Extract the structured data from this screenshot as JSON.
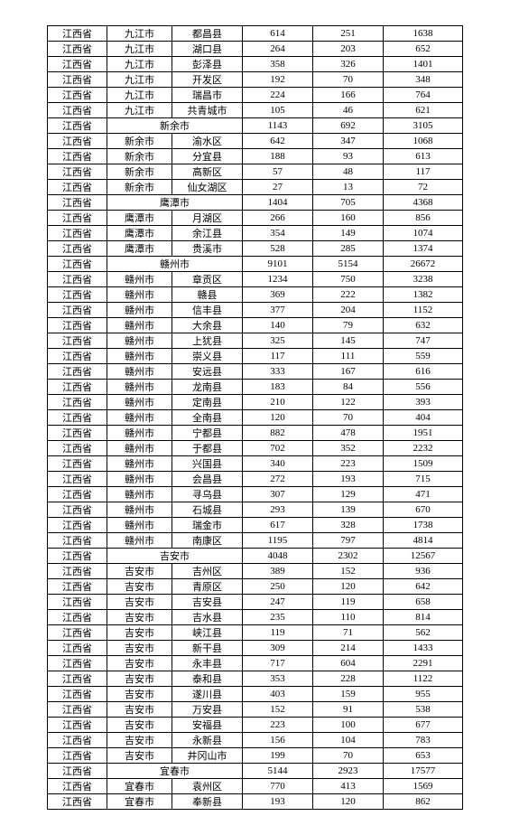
{
  "columns": 6,
  "rows": [
    [
      "江西省",
      "九江市",
      "都昌县",
      "614",
      "251",
      "1638"
    ],
    [
      "江西省",
      "九江市",
      "湖口县",
      "264",
      "203",
      "652"
    ],
    [
      "江西省",
      "九江市",
      "彭泽县",
      "358",
      "326",
      "1401"
    ],
    [
      "江西省",
      "九江市",
      "开发区",
      "192",
      "70",
      "348"
    ],
    [
      "江西省",
      "九江市",
      "瑞昌市",
      "224",
      "166",
      "764"
    ],
    [
      "江西省",
      "九江市",
      "共青城市",
      "105",
      "46",
      "621"
    ],
    {
      "span": "city",
      "province": "江西省",
      "city": "新余市",
      "v1": "1143",
      "v2": "692",
      "v3": "3105"
    },
    [
      "江西省",
      "新余市",
      "渝水区",
      "642",
      "347",
      "1068"
    ],
    [
      "江西省",
      "新余市",
      "分宜县",
      "188",
      "93",
      "613"
    ],
    [
      "江西省",
      "新余市",
      "高新区",
      "57",
      "48",
      "117"
    ],
    [
      "江西省",
      "新余市",
      "仙女湖区",
      "27",
      "13",
      "72"
    ],
    {
      "span": "city",
      "province": "江西省",
      "city": "鹰潭市",
      "v1": "1404",
      "v2": "705",
      "v3": "4368"
    },
    [
      "江西省",
      "鹰潭市",
      "月湖区",
      "266",
      "160",
      "856"
    ],
    [
      "江西省",
      "鹰潭市",
      "余江县",
      "354",
      "149",
      "1074"
    ],
    [
      "江西省",
      "鹰潭市",
      "贵溪市",
      "528",
      "285",
      "1374"
    ],
    {
      "span": "city",
      "province": "江西省",
      "city": "赣州市",
      "v1": "9101",
      "v2": "5154",
      "v3": "26672"
    },
    [
      "江西省",
      "赣州市",
      "章贡区",
      "1234",
      "750",
      "3238"
    ],
    [
      "江西省",
      "赣州市",
      "赣县",
      "369",
      "222",
      "1382"
    ],
    [
      "江西省",
      "赣州市",
      "信丰县",
      "377",
      "204",
      "1152"
    ],
    [
      "江西省",
      "赣州市",
      "大余县",
      "140",
      "79",
      "632"
    ],
    [
      "江西省",
      "赣州市",
      "上犹县",
      "325",
      "145",
      "747"
    ],
    [
      "江西省",
      "赣州市",
      "崇义县",
      "117",
      "111",
      "559"
    ],
    [
      "江西省",
      "赣州市",
      "安远县",
      "333",
      "167",
      "616"
    ],
    [
      "江西省",
      "赣州市",
      "龙南县",
      "183",
      "84",
      "556"
    ],
    [
      "江西省",
      "赣州市",
      "定南县",
      "210",
      "122",
      "393"
    ],
    [
      "江西省",
      "赣州市",
      "全南县",
      "120",
      "70",
      "404"
    ],
    [
      "江西省",
      "赣州市",
      "宁都县",
      "882",
      "478",
      "1951"
    ],
    [
      "江西省",
      "赣州市",
      "于都县",
      "702",
      "352",
      "2232"
    ],
    [
      "江西省",
      "赣州市",
      "兴国县",
      "340",
      "223",
      "1509"
    ],
    [
      "江西省",
      "赣州市",
      "会昌县",
      "272",
      "193",
      "715"
    ],
    [
      "江西省",
      "赣州市",
      "寻乌县",
      "307",
      "129",
      "471"
    ],
    [
      "江西省",
      "赣州市",
      "石城县",
      "293",
      "139",
      "670"
    ],
    [
      "江西省",
      "赣州市",
      "瑞金市",
      "617",
      "328",
      "1738"
    ],
    [
      "江西省",
      "赣州市",
      "南康区",
      "1195",
      "797",
      "4814"
    ],
    {
      "span": "city",
      "province": "江西省",
      "city": "吉安市",
      "v1": "4048",
      "v2": "2302",
      "v3": "12567"
    },
    [
      "江西省",
      "吉安市",
      "吉州区",
      "389",
      "152",
      "936"
    ],
    [
      "江西省",
      "吉安市",
      "青原区",
      "250",
      "120",
      "642"
    ],
    [
      "江西省",
      "吉安市",
      "吉安县",
      "247",
      "119",
      "658"
    ],
    [
      "江西省",
      "吉安市",
      "吉水县",
      "235",
      "110",
      "814"
    ],
    [
      "江西省",
      "吉安市",
      "峡江县",
      "119",
      "71",
      "562"
    ],
    [
      "江西省",
      "吉安市",
      "新干县",
      "309",
      "214",
      "1433"
    ],
    [
      "江西省",
      "吉安市",
      "永丰县",
      "717",
      "604",
      "2291"
    ],
    [
      "江西省",
      "吉安市",
      "泰和县",
      "353",
      "228",
      "1122"
    ],
    [
      "江西省",
      "吉安市",
      "遂川县",
      "403",
      "159",
      "955"
    ],
    [
      "江西省",
      "吉安市",
      "万安县",
      "152",
      "91",
      "538"
    ],
    [
      "江西省",
      "吉安市",
      "安福县",
      "223",
      "100",
      "677"
    ],
    [
      "江西省",
      "吉安市",
      "永新县",
      "156",
      "104",
      "783"
    ],
    [
      "江西省",
      "吉安市",
      "井冈山市",
      "199",
      "70",
      "653"
    ],
    {
      "span": "city",
      "province": "江西省",
      "city": "宜春市",
      "v1": "5144",
      "v2": "2923",
      "v3": "17577"
    },
    [
      "江西省",
      "宜春市",
      "袁州区",
      "770",
      "413",
      "1569"
    ],
    [
      "江西省",
      "宜春市",
      "奉新县",
      "193",
      "120",
      "862"
    ]
  ]
}
